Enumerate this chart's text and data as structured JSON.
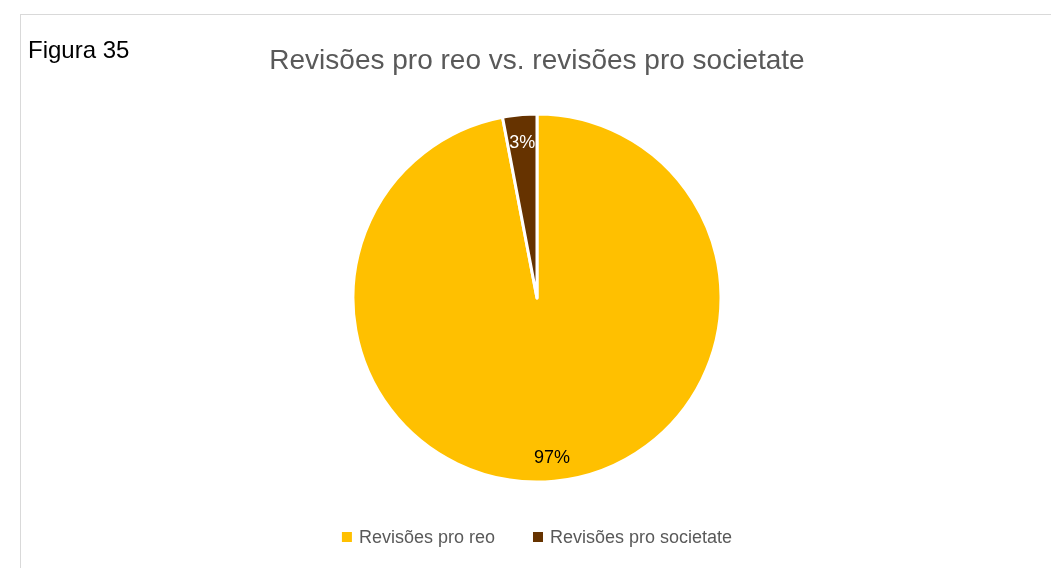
{
  "chart_data": {
    "type": "pie",
    "title": "Revisões pro reo vs. revisões pro societate",
    "annotations": [
      "Figura 35"
    ],
    "categories": [
      "Revisões pro reo",
      "Revisões pro societate"
    ],
    "values": [
      97,
      3
    ],
    "colors": [
      "#ffc000",
      "#663300"
    ],
    "value_labels": [
      "97%",
      "3%"
    ],
    "legend": "bottom"
  }
}
